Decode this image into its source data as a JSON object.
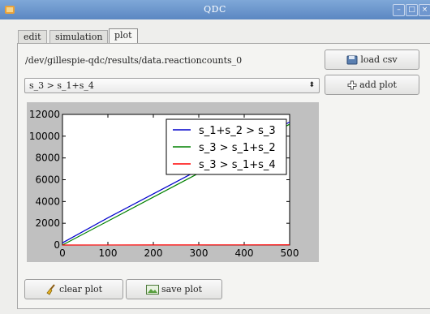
{
  "window": {
    "title": "QDC"
  },
  "tabs": [
    {
      "label": "edit"
    },
    {
      "label": "simulation"
    },
    {
      "label": "plot"
    }
  ],
  "active_tab": "plot",
  "file_path": "/dev/gillespie-qdc/results/data.reactioncounts_0",
  "buttons": {
    "load_csv": "load csv",
    "add_plot": "add plot",
    "clear_plot": "clear plot",
    "save_plot": "save plot"
  },
  "reaction_select": {
    "selected": "s_3 > s_1+s_4"
  },
  "icons": {
    "app": "app-icon",
    "load": "floppy-icon",
    "add": "plus-icon",
    "clear": "broom-icon",
    "save": "image-icon"
  },
  "chart_data": {
    "type": "line",
    "title": "",
    "xlabel": "",
    "ylabel": "",
    "xlim": [
      0,
      500
    ],
    "ylim": [
      0,
      12000
    ],
    "xticks": [
      0,
      100,
      200,
      300,
      400,
      500
    ],
    "yticks": [
      0,
      2000,
      4000,
      6000,
      8000,
      10000,
      12000
    ],
    "legend_position": "top-right",
    "series": [
      {
        "name": "s_1+s_2 > s_3",
        "color": "#0000cc",
        "x": [
          0,
          100,
          200,
          300,
          400,
          500
        ],
        "y": [
          200,
          2500,
          4700,
          6900,
          9000,
          11300
        ]
      },
      {
        "name": "s_3 > s_1+s_2",
        "color": "#008000",
        "x": [
          0,
          100,
          200,
          300,
          400,
          500
        ],
        "y": [
          0,
          2200,
          4400,
          6600,
          8800,
          11100
        ]
      },
      {
        "name": "s_3 > s_1+s_4",
        "color": "#ff0000",
        "x": [
          0,
          100,
          200,
          300,
          400,
          500
        ],
        "y": [
          0,
          5,
          10,
          12,
          15,
          18
        ]
      }
    ]
  }
}
